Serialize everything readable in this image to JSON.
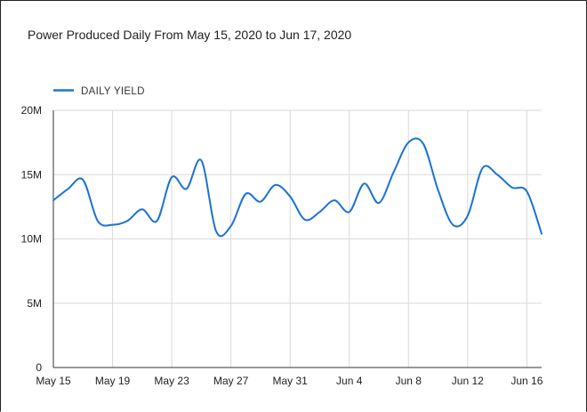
{
  "chart_data": {
    "type": "line",
    "title": "Power Produced Daily From May 15, 2020 to Jun 17, 2020",
    "legend": {
      "position": "top-left",
      "entries": [
        "DAILY  YIELD"
      ]
    },
    "xlabel": "",
    "ylabel": "",
    "ylim": [
      0,
      20000000
    ],
    "yticks": [
      0,
      5000000,
      10000000,
      15000000,
      20000000
    ],
    "ytick_labels": [
      "0",
      "5M",
      "10M",
      "15M",
      "20M"
    ],
    "xlim": [
      "2020-05-15",
      "2020-06-17"
    ],
    "xticks": [
      "2020-05-15",
      "2020-05-19",
      "2020-05-23",
      "2020-05-27",
      "2020-05-31",
      "2020-06-04",
      "2020-06-08",
      "2020-06-12",
      "2020-06-16"
    ],
    "xtick_labels": [
      "May 15",
      "May 19",
      "May 23",
      "May 27",
      "May 31",
      "Jun 4",
      "Jun 8",
      "Jun 12",
      "Jun 16"
    ],
    "grid": true,
    "color": "#1a73d4",
    "series": [
      {
        "name": "DAILY  YIELD",
        "x": [
          "2020-05-15",
          "2020-05-16",
          "2020-05-17",
          "2020-05-18",
          "2020-05-19",
          "2020-05-20",
          "2020-05-21",
          "2020-05-22",
          "2020-05-23",
          "2020-05-24",
          "2020-05-25",
          "2020-05-26",
          "2020-05-27",
          "2020-05-28",
          "2020-05-29",
          "2020-05-30",
          "2020-05-31",
          "2020-06-01",
          "2020-06-02",
          "2020-06-03",
          "2020-06-04",
          "2020-06-05",
          "2020-06-06",
          "2020-06-07",
          "2020-06-08",
          "2020-06-09",
          "2020-06-10",
          "2020-06-11",
          "2020-06-12",
          "2020-06-13",
          "2020-06-14",
          "2020-06-15",
          "2020-06-16",
          "2020-06-17"
        ],
        "values": [
          13000000,
          13900000,
          14600000,
          11400000,
          11100000,
          11400000,
          12300000,
          11400000,
          14800000,
          13900000,
          16100000,
          10600000,
          11000000,
          13500000,
          12900000,
          14200000,
          13300000,
          11500000,
          12100000,
          13000000,
          12100000,
          14300000,
          12800000,
          15200000,
          17500000,
          17400000,
          13800000,
          11100000,
          11800000,
          15500000,
          15000000,
          14000000,
          13700000,
          10400000
        ]
      }
    ]
  }
}
